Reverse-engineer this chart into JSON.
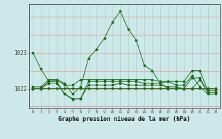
{
  "bg_color": "#cce8e8",
  "grid_color_v": "#a8d0d0",
  "grid_color_h": "#f08080",
  "line_color": "#1a6b1a",
  "marker_color": "#1a6b1a",
  "xlabel": "Graphe pression niveau de la mer (hPa)",
  "ylabel_ticks": [
    1022,
    1023
  ],
  "xlim": [
    -0.5,
    23.5
  ],
  "ylim": [
    1021.45,
    1024.35
  ],
  "x_ticks": [
    0,
    1,
    2,
    3,
    4,
    5,
    6,
    7,
    8,
    9,
    10,
    11,
    12,
    13,
    14,
    15,
    16,
    17,
    18,
    19,
    20,
    21,
    22,
    23
  ],
  "series": [
    [
      1023.0,
      1022.55,
      1022.2,
      1022.25,
      1022.15,
      1021.85,
      1022.05,
      1022.85,
      1023.1,
      1023.4,
      1023.85,
      1024.15,
      1023.65,
      1023.35,
      1022.65,
      1022.5,
      1022.15,
      1022.2,
      1022.1,
      1022.1,
      1022.35,
      1022.05,
      1021.85,
      1021.85
    ],
    [
      1022.0,
      1022.0,
      1022.2,
      1022.2,
      1021.85,
      1021.7,
      1021.72,
      1022.2,
      1022.2,
      1022.2,
      1022.2,
      1022.2,
      1022.2,
      1022.2,
      1022.15,
      1022.15,
      1022.15,
      1022.0,
      1022.0,
      1022.0,
      1022.3,
      1022.3,
      1021.9,
      1021.9
    ],
    [
      1022.05,
      1022.05,
      1022.25,
      1022.25,
      1022.1,
      1022.1,
      1022.25,
      1022.25,
      1022.25,
      1022.25,
      1022.25,
      1022.25,
      1022.25,
      1022.25,
      1022.25,
      1022.25,
      1022.2,
      1022.2,
      1022.2,
      1022.2,
      1022.5,
      1022.5,
      1021.95,
      1021.95
    ],
    [
      1022.02,
      1022.02,
      1022.02,
      1022.02,
      1022.02,
      1022.02,
      1022.02,
      1022.02,
      1022.02,
      1022.02,
      1022.02,
      1022.02,
      1022.02,
      1022.02,
      1022.02,
      1022.02,
      1022.02,
      1022.02,
      1022.02,
      1022.02,
      1022.02,
      1022.02,
      1022.02,
      1022.02
    ],
    [
      1022.0,
      1022.0,
      1022.15,
      1022.15,
      1021.85,
      1021.72,
      1021.72,
      1022.1,
      1022.1,
      1022.1,
      1022.1,
      1022.15,
      1022.1,
      1022.1,
      1022.1,
      1022.1,
      1022.1,
      1022.05,
      1022.05,
      1022.0,
      1022.0,
      1022.25,
      1021.9,
      1021.9
    ]
  ]
}
